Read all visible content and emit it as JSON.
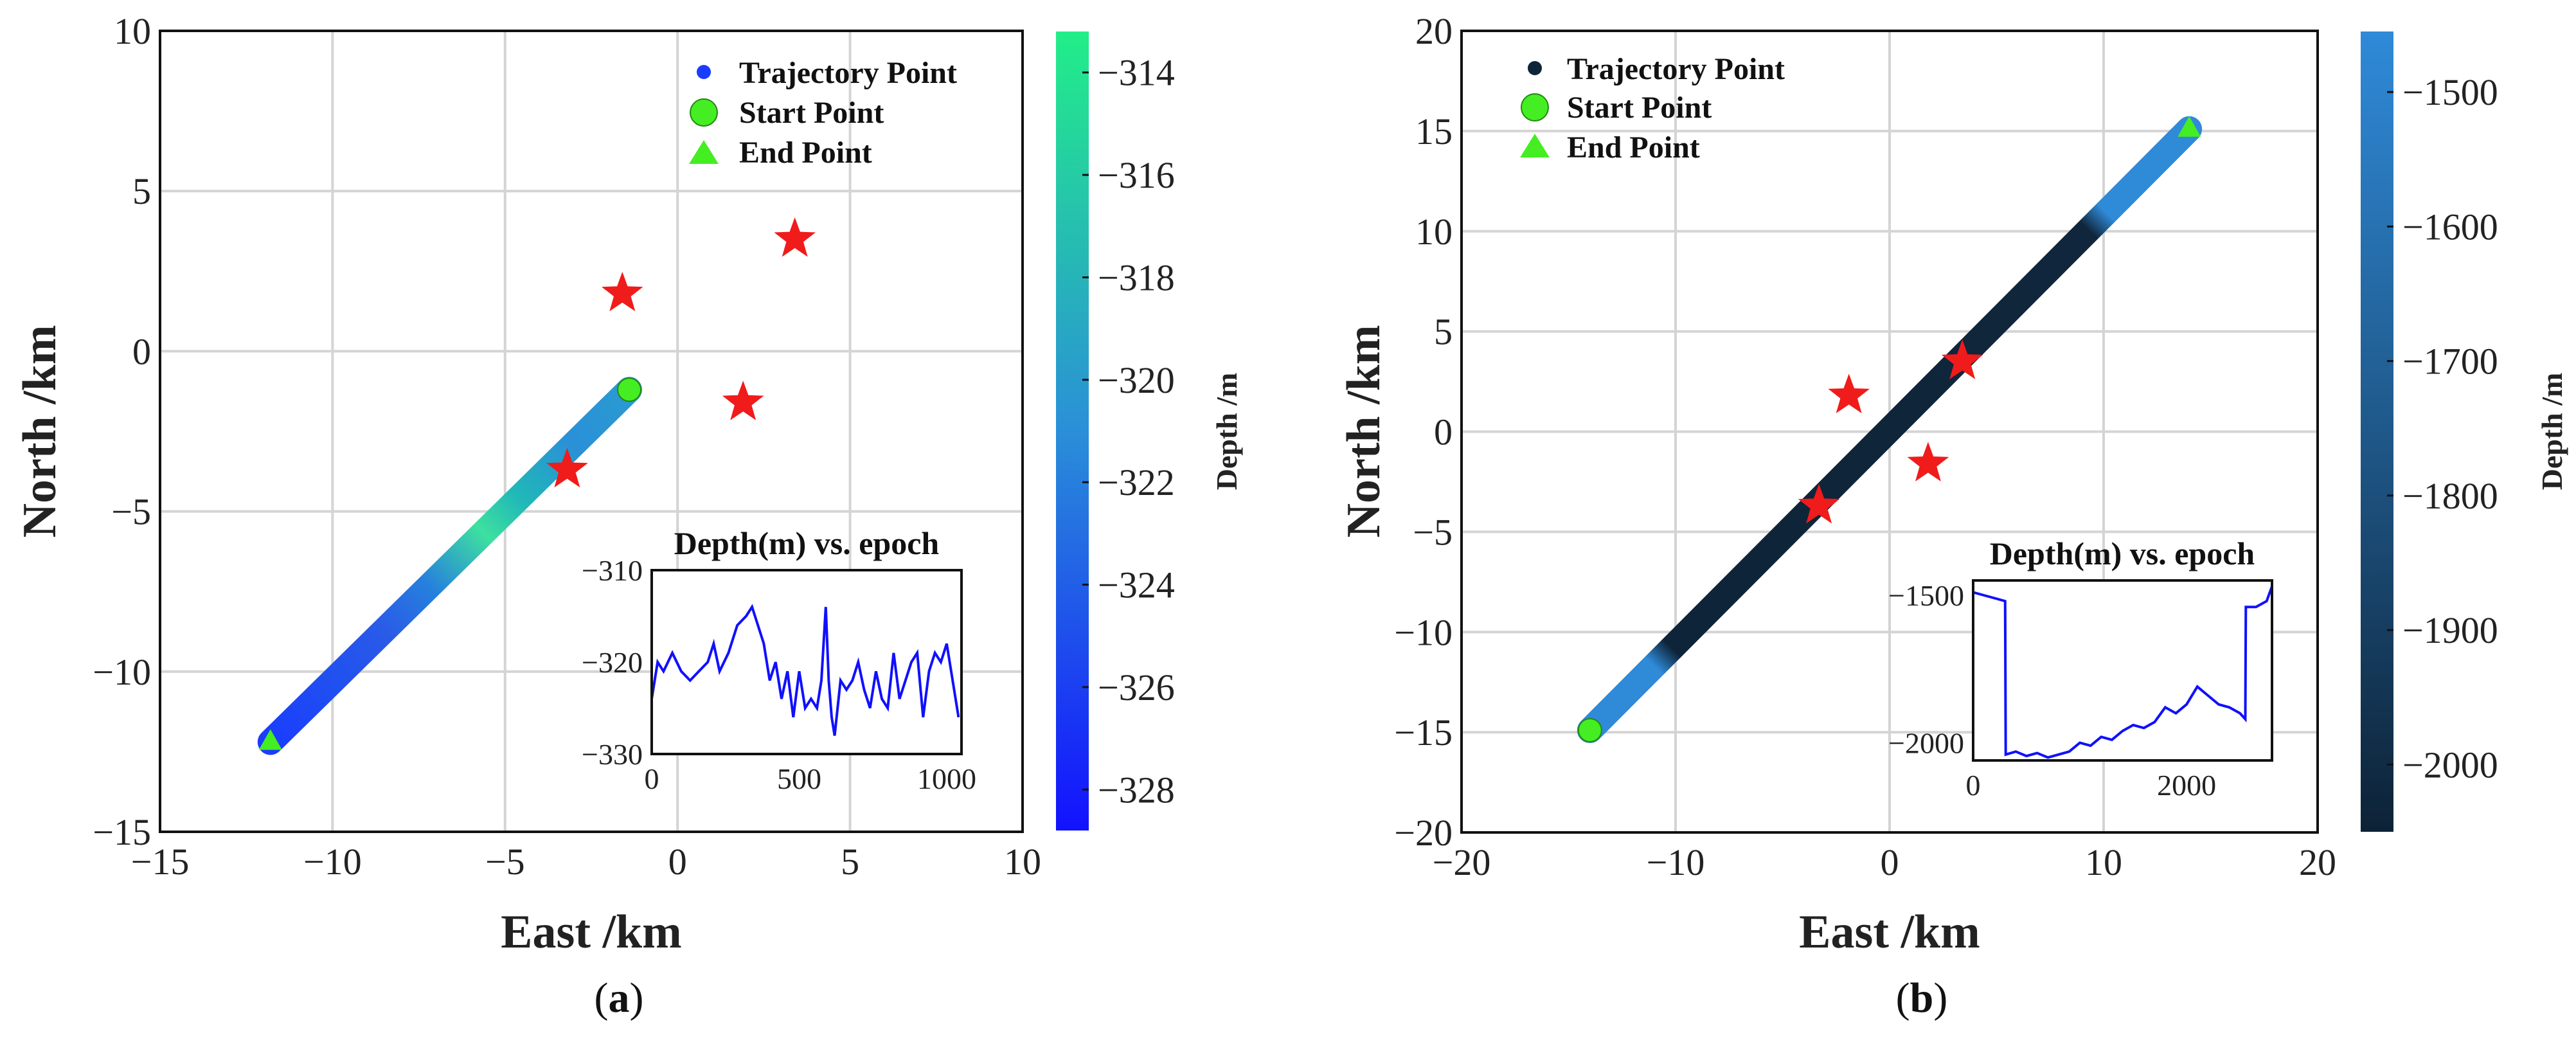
{
  "chart_data": [
    {
      "panel": "a",
      "caption_open": "(",
      "caption_letter": "a",
      "caption_close": ")",
      "type": "scatter",
      "xlabel": "East /km",
      "ylabel": "North /km",
      "xlim": [
        -15,
        10
      ],
      "ylim": [
        -15,
        10
      ],
      "xticks": [
        -15,
        -10,
        -5,
        0,
        5,
        10
      ],
      "yticks": [
        -15,
        -10,
        -5,
        0,
        5,
        10
      ],
      "xtick_labels": [
        "−15",
        "−10",
        "−5",
        "0",
        "5",
        "10"
      ],
      "ytick_labels": [
        "−15",
        "−10",
        "−5",
        "0",
        "5",
        "10"
      ],
      "grid": true,
      "legend": {
        "placement": "top-right",
        "entries": [
          "Trajectory Point",
          "Start Point",
          "End Point"
        ]
      },
      "trajectory": {
        "start": [
          -1.4,
          -1.2
        ],
        "end": [
          -11.8,
          -12.2
        ]
      },
      "start_point": [
        -1.4,
        -1.2
      ],
      "end_point": [
        -11.8,
        -12.2
      ],
      "stars": [
        [
          3.4,
          3.5
        ],
        [
          -1.6,
          1.8
        ],
        [
          1.9,
          -1.6
        ],
        [
          -3.2,
          -3.7
        ]
      ],
      "colorbar": {
        "label": "Depth /m",
        "range": [
          -328.8,
          -313.2
        ],
        "ticks": [
          -314,
          -316,
          -318,
          -320,
          -322,
          -324,
          -326,
          -328
        ],
        "tick_labels": [
          "−314",
          "−316",
          "−318",
          "−320",
          "−322",
          "−324",
          "−326",
          "−328"
        ],
        "color_high": "#22ee88",
        "color_mid": "#2a8fd8",
        "color_low": "#1212ff"
      },
      "inset": {
        "title": "Depth(m) vs. epoch",
        "xlim": [
          0,
          1050
        ],
        "ylim": [
          -330,
          -310
        ],
        "xticks": [
          0,
          500,
          1000
        ],
        "yticks": [
          -310,
          -320,
          -330
        ],
        "xtick_labels": [
          "0",
          "500",
          "1000"
        ],
        "ytick_labels": [
          "−310",
          "−320",
          "−330"
        ],
        "series": {
          "x": [
            0,
            20,
            40,
            70,
            100,
            130,
            160,
            190,
            210,
            230,
            260,
            290,
            320,
            340,
            360,
            380,
            400,
            420,
            440,
            460,
            480,
            500,
            520,
            540,
            560,
            575,
            590,
            600,
            610,
            620,
            640,
            660,
            680,
            700,
            720,
            740,
            760,
            780,
            800,
            820,
            840,
            860,
            880,
            900,
            920,
            940,
            960,
            980,
            1000,
            1020,
            1040
          ],
          "y": [
            -324,
            -320,
            -321,
            -319,
            -321,
            -322,
            -321,
            -320,
            -318,
            -321,
            -319,
            -316,
            -315,
            -314,
            -316,
            -318,
            -322,
            -320,
            -324,
            -321,
            -326,
            -321,
            -325,
            -324,
            -325,
            -322,
            -314,
            -322,
            -326,
            -328,
            -322,
            -323,
            -322,
            -320,
            -323,
            -325,
            -321,
            -324,
            -325,
            -319,
            -324,
            -322,
            -320,
            -319,
            -326,
            -321,
            -319,
            -320,
            -318,
            -322,
            -326
          ]
        }
      }
    },
    {
      "panel": "b",
      "caption_open": "(",
      "caption_letter": "b",
      "caption_close": ")",
      "type": "scatter",
      "xlabel": "East /km",
      "ylabel": "North /km",
      "xlim": [
        -20,
        20
      ],
      "ylim": [
        -20,
        20
      ],
      "xticks": [
        -20,
        -10,
        0,
        10,
        20
      ],
      "yticks": [
        -20,
        -15,
        -10,
        -5,
        0,
        5,
        10,
        15,
        20
      ],
      "xtick_labels": [
        "−20",
        "−10",
        "0",
        "10",
        "20"
      ],
      "ytick_labels": [
        "−20",
        "−15",
        "−10",
        "−5",
        "0",
        "5",
        "10",
        "15",
        "20"
      ],
      "grid": true,
      "legend": {
        "placement": "top-left",
        "entries": [
          "Trajectory Point",
          "Start Point",
          "End Point"
        ]
      },
      "trajectory": {
        "start": [
          -14,
          -14.9
        ],
        "end": [
          14,
          15.1
        ]
      },
      "start_point": [
        -14,
        -14.9
      ],
      "end_point": [
        14,
        15.1
      ],
      "stars": [
        [
          3.4,
          3.5
        ],
        [
          -1.9,
          1.8
        ],
        [
          1.8,
          -1.6
        ],
        [
          -3.3,
          -3.7
        ]
      ],
      "colorbar": {
        "label": "Depth /m",
        "range": [
          -2050,
          -1455
        ],
        "ticks": [
          -1500,
          -1600,
          -1700,
          -1800,
          -1900,
          -2000
        ],
        "tick_labels": [
          "−1500",
          "−1600",
          "−1700",
          "−1800",
          "−1900",
          "−2000"
        ],
        "color_high": "#2f8ad8",
        "color_low": "#0d2236"
      },
      "inset": {
        "title": "Depth(m) vs. epoch",
        "xlim": [
          0,
          2800
        ],
        "ylim": [
          -2060,
          -1450
        ],
        "xticks": [
          0,
          2000
        ],
        "yticks": [
          -1500,
          -2000
        ],
        "xtick_labels": [
          "0",
          "2000"
        ],
        "ytick_labels": [
          "−1500",
          "−2000"
        ],
        "series": {
          "x": [
            0,
            100,
            200,
            300,
            305,
            400,
            500,
            600,
            700,
            800,
            900,
            1000,
            1100,
            1200,
            1300,
            1400,
            1500,
            1600,
            1700,
            1800,
            1900,
            2000,
            2100,
            2200,
            2300,
            2400,
            2500,
            2550,
            2555,
            2650,
            2750,
            2800
          ],
          "y": [
            -1490,
            -1500,
            -1510,
            -1520,
            -2040,
            -2030,
            -2045,
            -2035,
            -2050,
            -2040,
            -2030,
            -2000,
            -2010,
            -1980,
            -1990,
            -1960,
            -1940,
            -1950,
            -1930,
            -1880,
            -1900,
            -1870,
            -1810,
            -1840,
            -1870,
            -1880,
            -1900,
            -1920,
            -1540,
            -1540,
            -1520,
            -1470
          ]
        }
      }
    }
  ]
}
